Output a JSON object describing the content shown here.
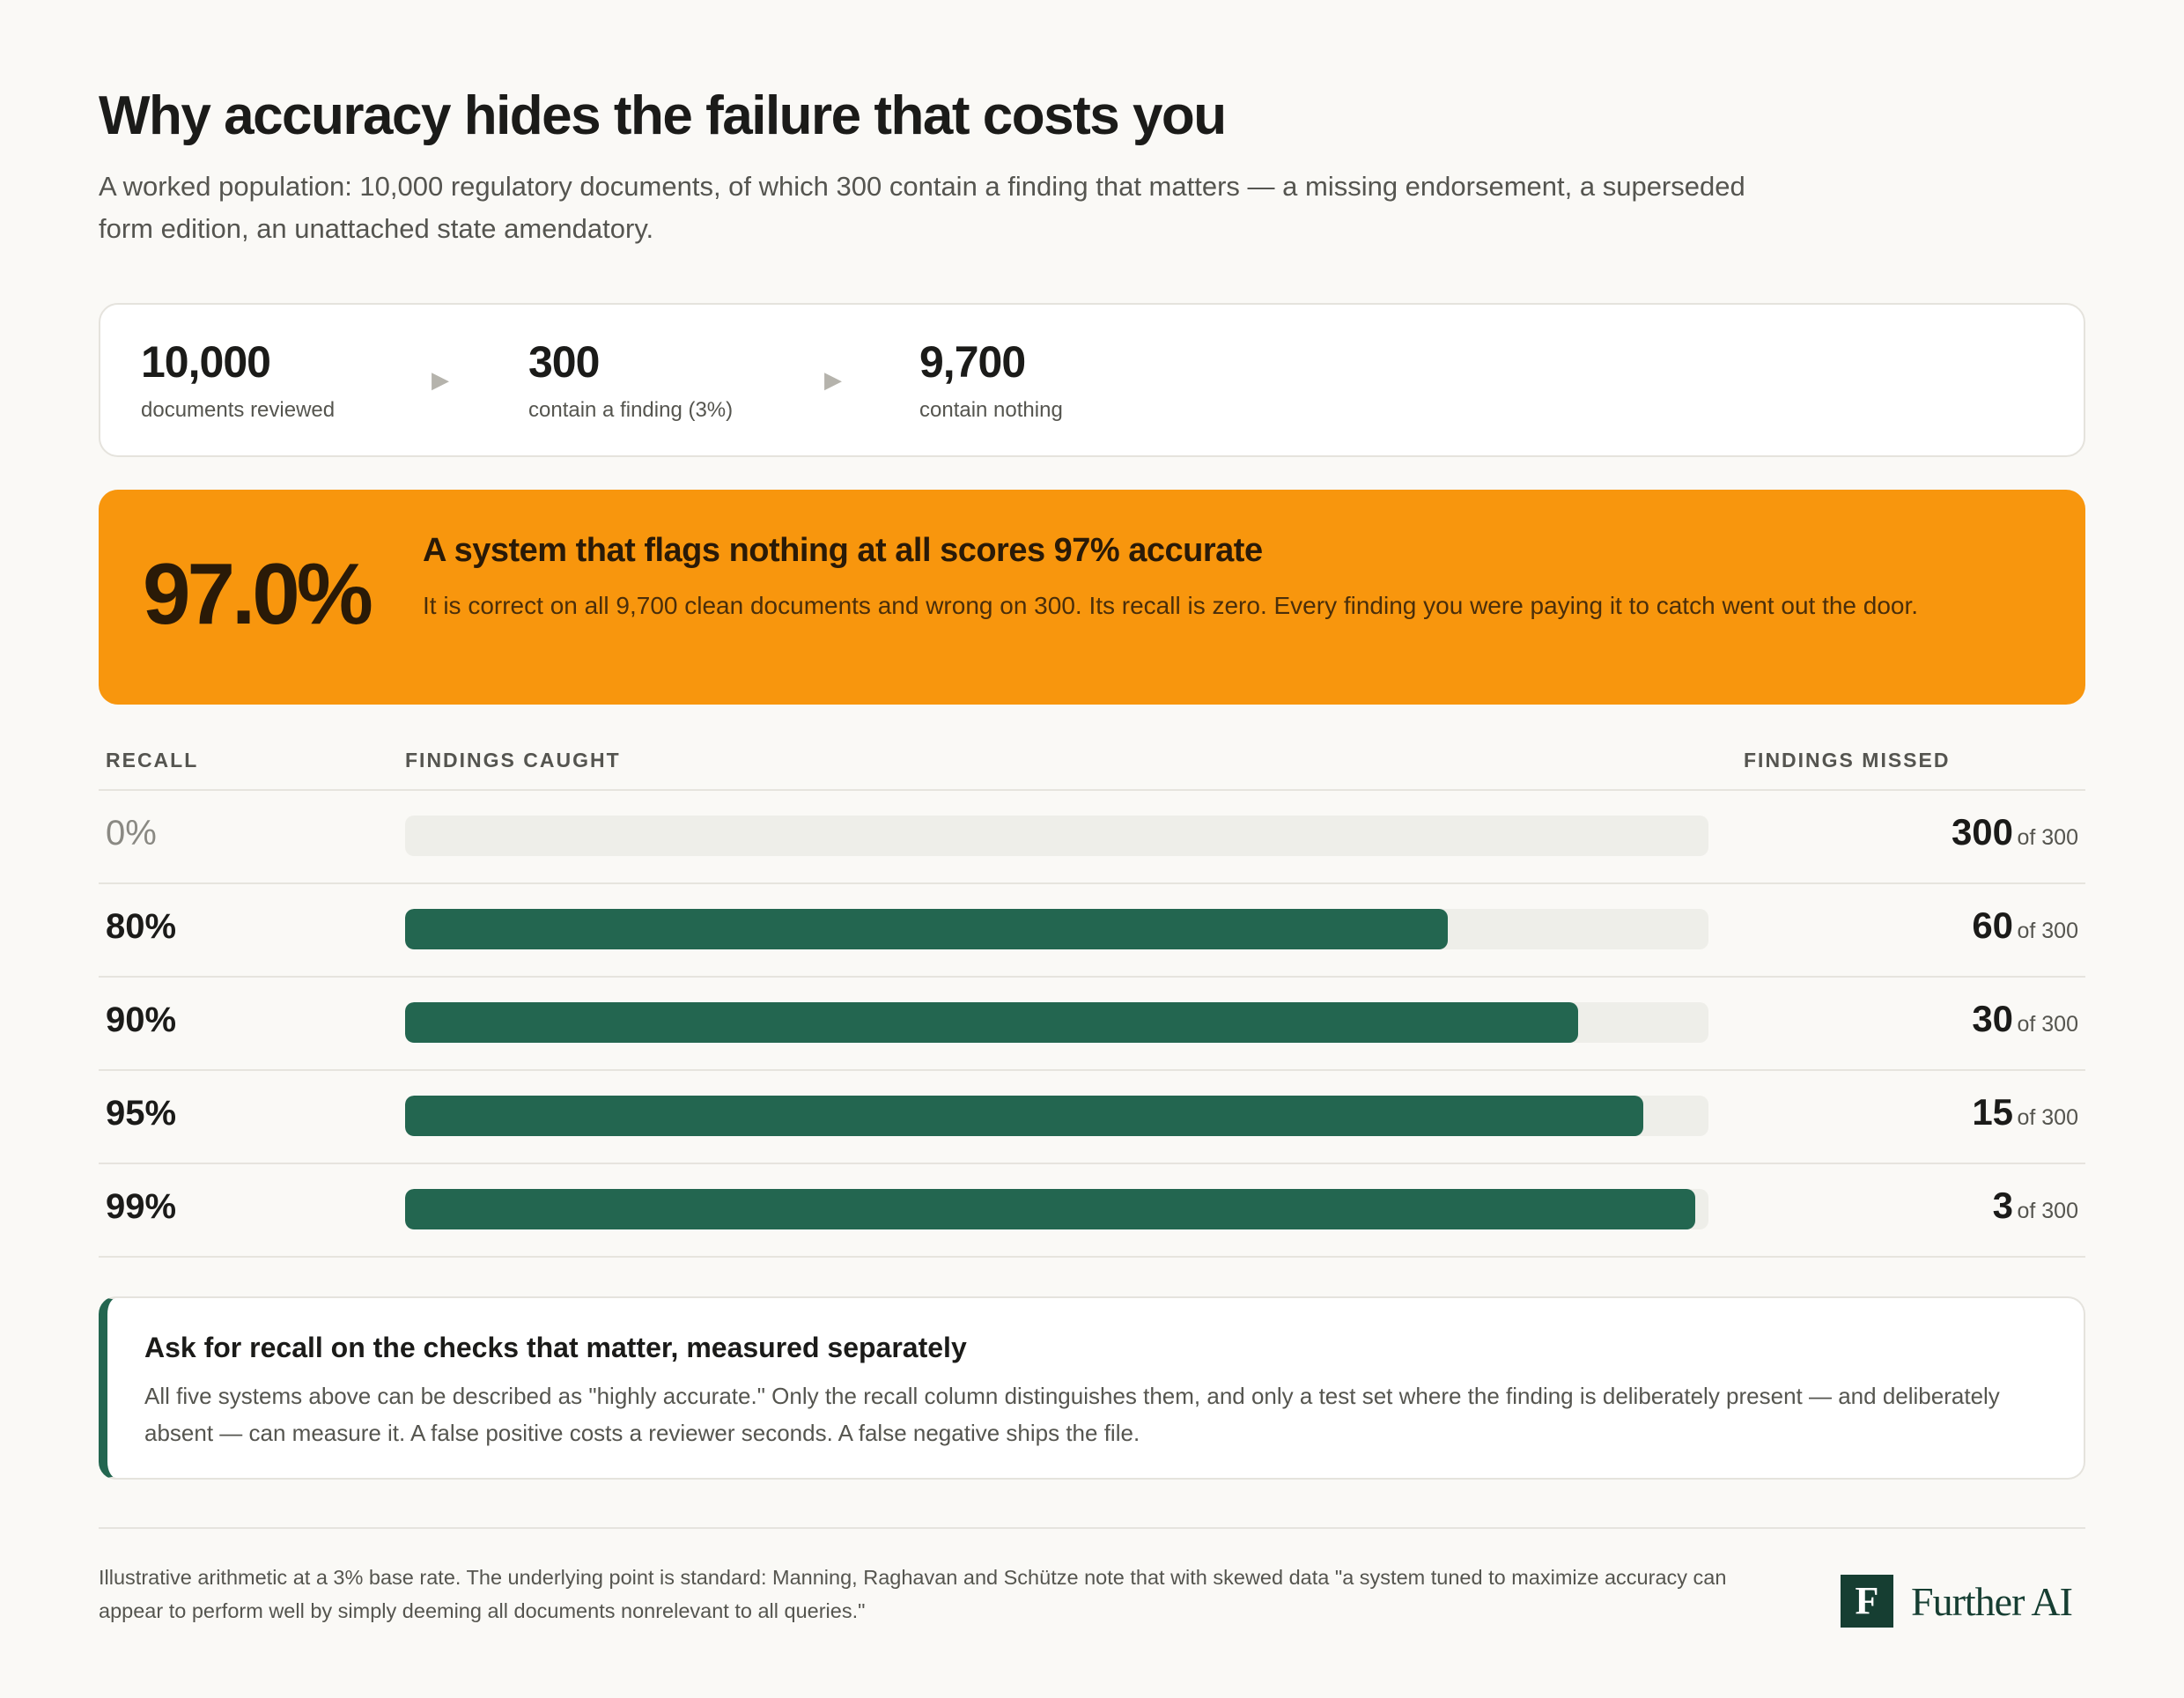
{
  "header": {
    "title": "Why accuracy hides the failure that costs you",
    "subtitle": "A worked population: 10,000 regulatory documents, of which 300 contain a finding that matters — a missing endorsement, a superseded form edition, an unattached state amendatory."
  },
  "stats": [
    {
      "value": "10,000",
      "label": "documents reviewed"
    },
    {
      "value": "300",
      "label": "contain a finding (3%)"
    },
    {
      "value": "9,700",
      "label": "contain nothing"
    }
  ],
  "stats_arrow": "▶",
  "banner": {
    "big": "97.0%",
    "headline": "A system that flags nothing at all scores 97% accurate",
    "text": "It is correct on all 9,700 clean documents and wrong on 300. Its recall is zero. Every finding you were paying it to catch went out the door."
  },
  "chart_data": {
    "type": "bar",
    "orientation": "horizontal",
    "columns": {
      "recall": "RECALL",
      "caught": "FINDINGS CAUGHT",
      "missed": "FINDINGS MISSED"
    },
    "total": 300,
    "total_label": "of 300",
    "rows": [
      {
        "recall_label": "0%",
        "recall": 0,
        "missed": 300
      },
      {
        "recall_label": "80%",
        "recall": 80,
        "missed": 60
      },
      {
        "recall_label": "90%",
        "recall": 90,
        "missed": 30
      },
      {
        "recall_label": "95%",
        "recall": 95,
        "missed": 15
      },
      {
        "recall_label": "99%",
        "recall": 99,
        "missed": 3
      }
    ],
    "colors": {
      "fill": "#236650",
      "track": "#eeeee9"
    }
  },
  "callout": {
    "headline": "Ask for recall on the checks that matter, measured separately",
    "text": "All five systems above can be described as \"highly accurate.\" Only the recall column distinguishes them, and only a test set where the finding is deliberately present — and deliberately absent — can measure it. A false positive costs a reviewer seconds. A false negative ships the file."
  },
  "footer": {
    "note": "Illustrative arithmetic at a 3% base rate. The underlying point is standard: Manning, Raghavan and Schütze note that with skewed data \"a system tuned to maximize accuracy can appear to perform well by simply deeming all documents nonrelevant to all queries.\"",
    "logo_mark": "F",
    "logo_word": "Further AI"
  },
  "colors": {
    "accent": "#f8960d",
    "brand": "#163e32",
    "bar": "#236650"
  }
}
